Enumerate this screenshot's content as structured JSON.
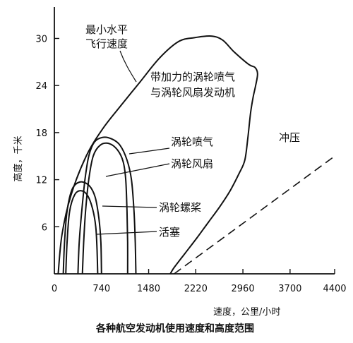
{
  "chart_data": {
    "type": "area",
    "caption": "各种航空发动机使用速度和高度范围",
    "xlabel": "速度，公里/小时",
    "ylabel": "高度，千米",
    "xlim": [
      0,
      4400
    ],
    "ylim": [
      0,
      34
    ],
    "x_ticks": [
      0,
      740,
      1480,
      2220,
      2960,
      3700,
      4400
    ],
    "y_ticks": [
      6,
      12,
      18,
      24,
      30
    ],
    "grid": false,
    "regions": [
      {
        "name": "带加力的涡轮喷气与涡轮风扇发动机",
        "label_lines": [
          "带加力的涡轮喷气",
          "与涡轮风扇发动机"
        ],
        "boundary": [
          [
            60,
            0
          ],
          [
            120,
            5
          ],
          [
            260,
            10
          ],
          [
            500,
            15
          ],
          [
            760,
            18.5
          ],
          [
            1050,
            21.5
          ],
          [
            1350,
            24.5
          ],
          [
            1650,
            27.5
          ],
          [
            1950,
            29.6
          ],
          [
            2200,
            30.1
          ],
          [
            2460,
            30.3
          ],
          [
            2640,
            29.8
          ],
          [
            2820,
            28.3
          ],
          [
            3050,
            26.7
          ],
          [
            3150,
            26.3
          ],
          [
            3190,
            25.5
          ],
          [
            3160,
            24
          ],
          [
            3120,
            22.5
          ],
          [
            3080,
            20.5
          ],
          [
            3040,
            17.5
          ],
          [
            2990,
            14.5
          ],
          [
            2900,
            12.8
          ],
          [
            2760,
            10.6
          ],
          [
            2600,
            8.6
          ],
          [
            2420,
            6.6
          ],
          [
            2240,
            4.6
          ],
          [
            2050,
            2.6
          ],
          [
            1880,
            0.8
          ],
          [
            1820,
            0
          ]
        ]
      },
      {
        "name": "涡轮喷气",
        "label_lines": [
          "涡轮喷气"
        ],
        "boundary": [
          [
            370,
            0
          ],
          [
            390,
            4
          ],
          [
            430,
            8
          ],
          [
            480,
            12
          ],
          [
            540,
            15
          ],
          [
            630,
            16.8
          ],
          [
            760,
            17.4
          ],
          [
            900,
            17.2
          ],
          [
            1030,
            16.4
          ],
          [
            1140,
            14.5
          ],
          [
            1210,
            12
          ],
          [
            1250,
            8
          ],
          [
            1270,
            4
          ],
          [
            1280,
            0
          ]
        ]
      },
      {
        "name": "涡轮风扇",
        "label_lines": [
          "涡轮风扇"
        ],
        "boundary": [
          [
            440,
            0
          ],
          [
            460,
            4
          ],
          [
            490,
            8
          ],
          [
            540,
            12
          ],
          [
            610,
            15
          ],
          [
            720,
            16.4
          ],
          [
            860,
            16.6
          ],
          [
            990,
            15.8
          ],
          [
            1080,
            14.3
          ],
          [
            1120,
            12
          ],
          [
            1140,
            8
          ],
          [
            1150,
            4
          ],
          [
            1150,
            0
          ]
        ]
      },
      {
        "name": "涡轮螺桨",
        "label_lines": [
          "涡轮螺桨"
        ],
        "boundary": [
          [
            140,
            0
          ],
          [
            160,
            4
          ],
          [
            200,
            8
          ],
          [
            280,
            10.8
          ],
          [
            400,
            11.7
          ],
          [
            540,
            11.3
          ],
          [
            640,
            9.8
          ],
          [
            700,
            7
          ],
          [
            730,
            4
          ],
          [
            740,
            0
          ]
        ]
      },
      {
        "name": "活塞",
        "label_lines": [
          "活塞"
        ],
        "boundary": [
          [
            180,
            0
          ],
          [
            200,
            4
          ],
          [
            240,
            8
          ],
          [
            320,
            10.1
          ],
          [
            420,
            10.6
          ],
          [
            520,
            10
          ],
          [
            600,
            8.3
          ],
          [
            650,
            6
          ],
          [
            670,
            3
          ],
          [
            680,
            0
          ]
        ]
      }
    ],
    "extra_lines": [
      {
        "name": "最小水平飞行速度",
        "label_lines": [
          "最小水平",
          "飞行速度"
        ],
        "style": "solid"
      },
      {
        "name": "冲压",
        "label_lines": [
          "冲压"
        ],
        "style": "dashed",
        "points": [
          [
            1880,
            0
          ],
          [
            4400,
            15
          ]
        ]
      }
    ]
  }
}
